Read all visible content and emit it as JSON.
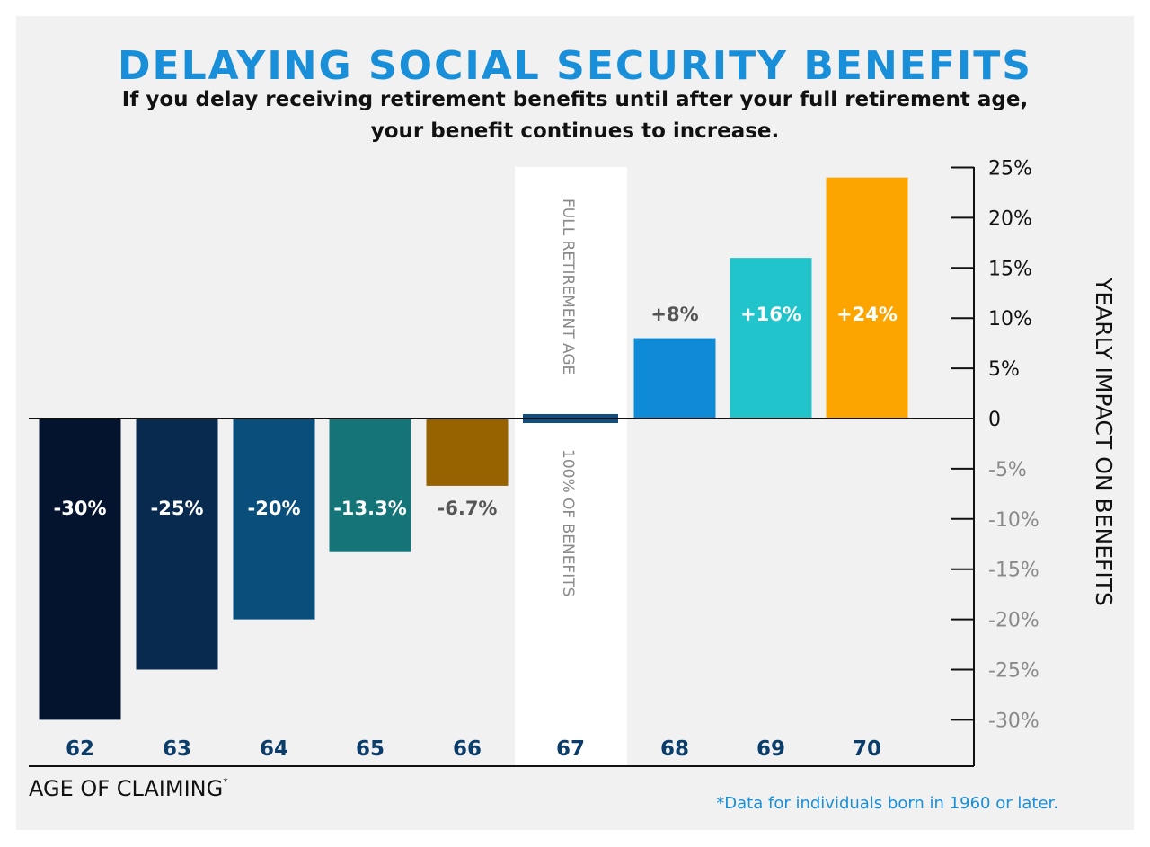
{
  "header": {
    "title": "DELAYING SOCIAL SECURITY BENEFITS",
    "subtitle_line1": "If you delay receiving retirement benefits until after your full retirement age,",
    "subtitle_line2": "your benefit continues to increase."
  },
  "chart_data": {
    "type": "bar",
    "title": "DELAYING SOCIAL SECURITY BENEFITS",
    "subtitle": "If you delay receiving retirement benefits until after your full retirement age, your benefit continues to increase.",
    "xlabel": "AGE OF CLAIMING",
    "xlabel_marker": "*",
    "ylabel": "YEARLY IMPACT ON BENEFITS",
    "ylim": [
      -30,
      25
    ],
    "yticks": [
      "25%",
      "20%",
      "15%",
      "10%",
      "5%",
      "0",
      "-5%",
      "-10%",
      "-15%",
      "-20%",
      "-25%",
      "-30%"
    ],
    "ytick_values": [
      25,
      20,
      15,
      10,
      5,
      0,
      -5,
      -10,
      -15,
      -20,
      -25,
      -30
    ],
    "y_axis_side": "right",
    "grid": false,
    "categories": [
      "62",
      "63",
      "64",
      "65",
      "66",
      "67",
      "68",
      "69",
      "70"
    ],
    "values": [
      -30,
      -25,
      -20,
      -13.3,
      -6.7,
      0,
      8,
      16,
      24
    ],
    "data_labels": [
      "-30%",
      "-25%",
      "-20%",
      "-13.3%",
      "-6.7%",
      "",
      "+8%",
      "+16%",
      "+24%"
    ],
    "colors": [
      "#04142e",
      "#082a4f",
      "#0a4f7c",
      "#157478",
      "#976200",
      "#0d4f82",
      "#0f8ad6",
      "#22c4cc",
      "#fca500"
    ],
    "label_colors": [
      "#ffffff",
      "#ffffff",
      "#ffffff",
      "#ffffff",
      "#555555",
      "#ffffff",
      "#555555",
      "#ffffff",
      "#ffffff"
    ],
    "highlight": {
      "category": "67",
      "label_top": "FULL RETIREMENT AGE",
      "label_bottom": "100% OF BENEFITS"
    },
    "footnote": "*Data for individuals born in 1960 or later."
  },
  "colors": {
    "title": "#1a8fd9",
    "category_labels": "#0b3d6b",
    "background": "#f1f1f1"
  }
}
